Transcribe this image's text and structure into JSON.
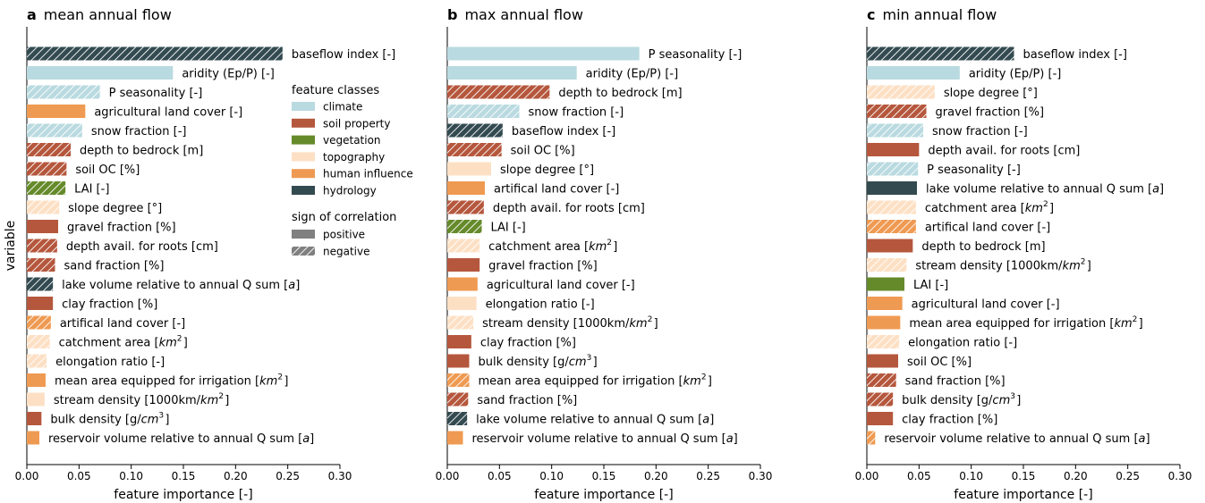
{
  "colors": {
    "climate": "#b9dae0",
    "soil property": "#b5573d",
    "vegetation": "#658a2a",
    "topography": "#fde0c4",
    "human influence": "#ef9a52",
    "hydrology": "#334a51"
  },
  "y_axis_label": "variable",
  "legend": {
    "classes_title": "feature classes",
    "classes": [
      {
        "key": "climate",
        "label": "climate"
      },
      {
        "key": "soil property",
        "label": "soil property"
      },
      {
        "key": "vegetation",
        "label": "vegetation"
      },
      {
        "key": "topography",
        "label": "topography"
      },
      {
        "key": "human influence",
        "label": "human influence"
      },
      {
        "key": "hydrology",
        "label": "hydrology"
      }
    ],
    "sign_title": "sign of correlation",
    "signs": [
      {
        "key": "positive",
        "label": "positive",
        "color": "#808080",
        "hatched": false
      },
      {
        "key": "negative",
        "label": "negative",
        "color": "#808080",
        "hatched": true
      }
    ]
  },
  "chart_data": [
    {
      "type": "bar",
      "orientation": "horizontal",
      "panel_letter": "a",
      "title": "mean annual flow",
      "xlabel": "feature importance [-]",
      "xlim": [
        0,
        0.3
      ],
      "xticks": [
        "0.00",
        "0.05",
        "0.10",
        "0.15",
        "0.20",
        "0.25",
        "0.30"
      ],
      "bars": [
        {
          "label": "baseflow index [-]",
          "value": 0.245,
          "class": "hydrology",
          "sign": "negative"
        },
        {
          "label": "aridity (Ep/P) [-]",
          "value": 0.14,
          "class": "climate",
          "sign": "positive"
        },
        {
          "label": "P seasonality [-]",
          "value": 0.07,
          "class": "climate",
          "sign": "negative"
        },
        {
          "label": "agricultural land cover [-]",
          "value": 0.056,
          "class": "human influence",
          "sign": "positive"
        },
        {
          "label": "snow fraction [-]",
          "value": 0.053,
          "class": "climate",
          "sign": "negative"
        },
        {
          "label": "depth to bedrock [m]",
          "value": 0.042,
          "class": "soil property",
          "sign": "negative"
        },
        {
          "label": "soil OC [%]",
          "value": 0.038,
          "class": "soil property",
          "sign": "negative"
        },
        {
          "label": "LAI [-]",
          "value": 0.037,
          "class": "vegetation",
          "sign": "negative"
        },
        {
          "label": "slope degree [°]",
          "value": 0.031,
          "class": "topography",
          "sign": "negative"
        },
        {
          "label": "gravel fraction [%]",
          "value": 0.03,
          "class": "soil property",
          "sign": "positive"
        },
        {
          "label": "depth avail. for roots [cm]",
          "value": 0.029,
          "class": "soil property",
          "sign": "negative"
        },
        {
          "label": "sand fraction [%]",
          "value": 0.027,
          "class": "soil property",
          "sign": "negative"
        },
        {
          "label": "lake volume relative to annual Q sum [a]",
          "value": 0.025,
          "class": "hydrology",
          "sign": "negative"
        },
        {
          "label": "clay fraction [%]",
          "value": 0.025,
          "class": "soil property",
          "sign": "positive"
        },
        {
          "label": "artifical land cover [-]",
          "value": 0.023,
          "class": "human influence",
          "sign": "negative"
        },
        {
          "label": "catchment area [km²]",
          "value": 0.022,
          "class": "topography",
          "sign": "negative"
        },
        {
          "label": "elongation ratio [-]",
          "value": 0.019,
          "class": "topography",
          "sign": "negative"
        },
        {
          "label": "mean area equipped for irrigation [km²]",
          "value": 0.018,
          "class": "human influence",
          "sign": "positive"
        },
        {
          "label": "stream density [1000km/km²]",
          "value": 0.017,
          "class": "topography",
          "sign": "positive"
        },
        {
          "label": "bulk density [g/cm³]",
          "value": 0.014,
          "class": "soil property",
          "sign": "positive"
        },
        {
          "label": "reservoir volume relative to annual Q sum [a]",
          "value": 0.012,
          "class": "human influence",
          "sign": "positive"
        }
      ]
    },
    {
      "type": "bar",
      "orientation": "horizontal",
      "panel_letter": "b",
      "title": "max annual flow",
      "xlabel": "feature importance [-]",
      "xlim": [
        0,
        0.3
      ],
      "xticks": [
        "0.00",
        "0.05",
        "0.10",
        "0.15",
        "0.20",
        "0.25",
        "0.30"
      ],
      "bars": [
        {
          "label": "P seasonality [-]",
          "value": 0.184,
          "class": "climate",
          "sign": "positive"
        },
        {
          "label": "aridity (Ep/P) [-]",
          "value": 0.124,
          "class": "climate",
          "sign": "positive"
        },
        {
          "label": "depth to bedrock [m]",
          "value": 0.098,
          "class": "soil property",
          "sign": "negative"
        },
        {
          "label": "snow fraction [-]",
          "value": 0.069,
          "class": "climate",
          "sign": "negative"
        },
        {
          "label": "baseflow index [-]",
          "value": 0.053,
          "class": "hydrology",
          "sign": "negative"
        },
        {
          "label": "soil OC [%]",
          "value": 0.052,
          "class": "soil property",
          "sign": "negative"
        },
        {
          "label": "slope degree [°]",
          "value": 0.042,
          "class": "topography",
          "sign": "positive"
        },
        {
          "label": "artifical land cover [-]",
          "value": 0.036,
          "class": "human influence",
          "sign": "positive"
        },
        {
          "label": "depth avail. for roots [cm]",
          "value": 0.035,
          "class": "soil property",
          "sign": "negative"
        },
        {
          "label": "LAI [-]",
          "value": 0.033,
          "class": "vegetation",
          "sign": "negative"
        },
        {
          "label": "catchment area [km²]",
          "value": 0.031,
          "class": "topography",
          "sign": "negative"
        },
        {
          "label": "gravel fraction [%]",
          "value": 0.031,
          "class": "soil property",
          "sign": "positive"
        },
        {
          "label": "agricultural land cover [-]",
          "value": 0.029,
          "class": "human influence",
          "sign": "positive"
        },
        {
          "label": "elongation ratio [-]",
          "value": 0.028,
          "class": "topography",
          "sign": "positive"
        },
        {
          "label": "stream density [1000km/km²]",
          "value": 0.025,
          "class": "topography",
          "sign": "negative"
        },
        {
          "label": "clay fraction [%]",
          "value": 0.023,
          "class": "soil property",
          "sign": "positive"
        },
        {
          "label": "bulk density [g/cm³]",
          "value": 0.021,
          "class": "soil property",
          "sign": "positive"
        },
        {
          "label": "mean area equipped for irrigation [km²]",
          "value": 0.021,
          "class": "human influence",
          "sign": "negative"
        },
        {
          "label": "sand fraction [%]",
          "value": 0.02,
          "class": "soil property",
          "sign": "negative"
        },
        {
          "label": "lake volume relative to annual Q sum [a]",
          "value": 0.019,
          "class": "hydrology",
          "sign": "negative"
        },
        {
          "label": "reservoir volume relative to annual Q sum [a]",
          "value": 0.015,
          "class": "human influence",
          "sign": "positive"
        }
      ]
    },
    {
      "type": "bar",
      "orientation": "horizontal",
      "panel_letter": "c",
      "title": "min annual flow",
      "xlabel": "feature importance [-]",
      "xlim": [
        0,
        0.3
      ],
      "xticks": [
        "0.00",
        "0.05",
        "0.10",
        "0.15",
        "0.20",
        "0.25",
        "0.30"
      ],
      "bars": [
        {
          "label": "baseflow index [-]",
          "value": 0.141,
          "class": "hydrology",
          "sign": "negative"
        },
        {
          "label": "aridity (Ep/P) [-]",
          "value": 0.089,
          "class": "climate",
          "sign": "positive"
        },
        {
          "label": "slope degree [°]",
          "value": 0.065,
          "class": "topography",
          "sign": "negative"
        },
        {
          "label": "gravel fraction [%]",
          "value": 0.057,
          "class": "soil property",
          "sign": "negative"
        },
        {
          "label": "snow fraction [-]",
          "value": 0.054,
          "class": "climate",
          "sign": "negative"
        },
        {
          "label": "depth avail. for roots [cm]",
          "value": 0.05,
          "class": "soil property",
          "sign": "positive"
        },
        {
          "label": "P seasonality [-]",
          "value": 0.049,
          "class": "climate",
          "sign": "negative"
        },
        {
          "label": "lake volume relative to annual Q sum [a]",
          "value": 0.048,
          "class": "hydrology",
          "sign": "positive"
        },
        {
          "label": "catchment area [km²]",
          "value": 0.047,
          "class": "topography",
          "sign": "negative"
        },
        {
          "label": "artifical land cover [-]",
          "value": 0.047,
          "class": "human influence",
          "sign": "negative"
        },
        {
          "label": "depth to bedrock [m]",
          "value": 0.044,
          "class": "soil property",
          "sign": "positive"
        },
        {
          "label": "stream density [1000km/km²]",
          "value": 0.038,
          "class": "topography",
          "sign": "negative"
        },
        {
          "label": "LAI [-]",
          "value": 0.036,
          "class": "vegetation",
          "sign": "positive"
        },
        {
          "label": "agricultural land cover [-]",
          "value": 0.034,
          "class": "human influence",
          "sign": "positive"
        },
        {
          "label": "mean area equipped for irrigation [km²]",
          "value": 0.032,
          "class": "human influence",
          "sign": "positive"
        },
        {
          "label": "elongation ratio [-]",
          "value": 0.031,
          "class": "topography",
          "sign": "negative"
        },
        {
          "label": "soil OC [%]",
          "value": 0.03,
          "class": "soil property",
          "sign": "positive"
        },
        {
          "label": "sand fraction [%]",
          "value": 0.028,
          "class": "soil property",
          "sign": "negative"
        },
        {
          "label": "bulk density [g/cm³]",
          "value": 0.025,
          "class": "soil property",
          "sign": "negative"
        },
        {
          "label": "clay fraction [%]",
          "value": 0.025,
          "class": "soil property",
          "sign": "positive"
        },
        {
          "label": "reservoir volume relative to annual Q sum [a]",
          "value": 0.008,
          "class": "human influence",
          "sign": "negative"
        }
      ]
    }
  ]
}
